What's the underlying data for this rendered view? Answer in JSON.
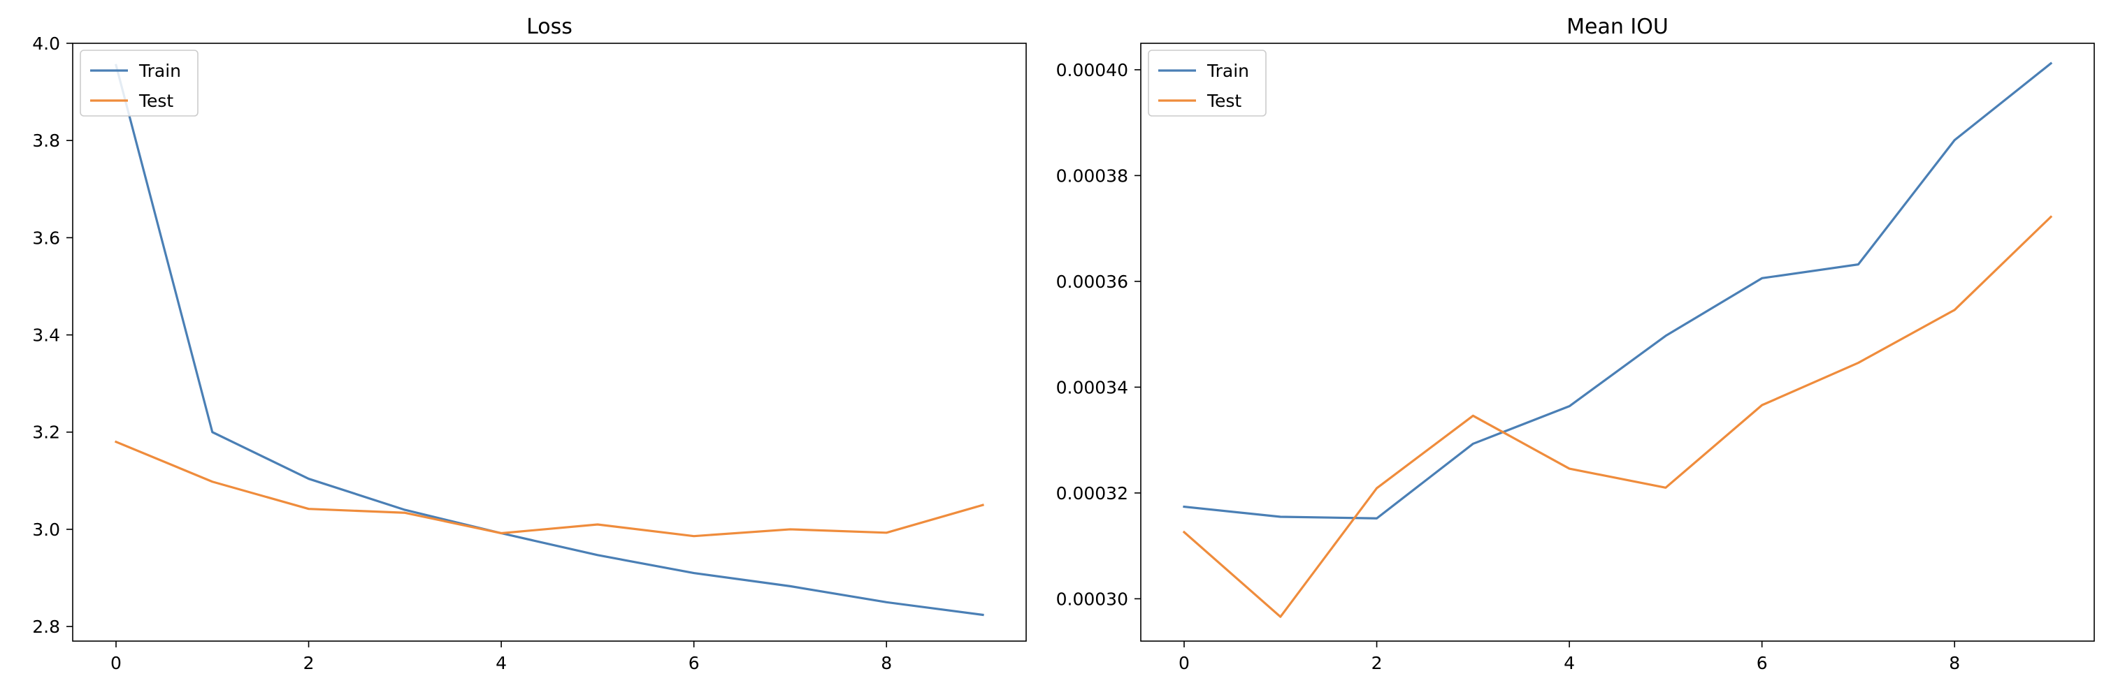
{
  "chart_data": [
    {
      "type": "line",
      "title": "Loss",
      "xlabel": "",
      "ylabel": "",
      "x": [
        0,
        1,
        2,
        3,
        4,
        5,
        6,
        7,
        8,
        9
      ],
      "xlim": [
        -0.45,
        9.45
      ],
      "ylim": [
        2.77,
        4.0
      ],
      "xticks": [
        0,
        2,
        4,
        6,
        8
      ],
      "xtick_labels": [
        "0",
        "2",
        "4",
        "6",
        "8"
      ],
      "yticks": [
        2.8,
        3.0,
        3.2,
        3.4,
        3.6,
        3.8,
        4.0
      ],
      "ytick_labels": [
        "2.8",
        "3.0",
        "3.2",
        "3.4",
        "3.6",
        "3.8",
        "4.0"
      ],
      "grid": false,
      "legend": "upper left",
      "series": [
        {
          "name": "Train",
          "color": "#4a7fb5",
          "values": [
            3.955,
            3.2,
            3.104,
            3.04,
            2.992,
            2.947,
            2.91,
            2.883,
            2.85,
            2.824
          ]
        },
        {
          "name": "Test",
          "color": "#ef8c3c",
          "values": [
            3.18,
            3.098,
            3.042,
            3.034,
            2.992,
            3.01,
            2.986,
            3.0,
            2.993,
            3.05
          ]
        }
      ]
    },
    {
      "type": "line",
      "title": "Mean IOU",
      "xlabel": "",
      "ylabel": "",
      "x": [
        0,
        1,
        2,
        3,
        4,
        5,
        6,
        7,
        8,
        9
      ],
      "xlim": [
        -0.45,
        9.45
      ],
      "ylim": [
        0.000292,
        0.000405
      ],
      "xticks": [
        0,
        2,
        4,
        6,
        8
      ],
      "xtick_labels": [
        "0",
        "2",
        "4",
        "6",
        "8"
      ],
      "yticks": [
        0.0003,
        0.00032,
        0.00034,
        0.00036,
        0.00038,
        0.0004
      ],
      "ytick_labels": [
        "0.00030",
        "0.00032",
        "0.00034",
        "0.00036",
        "0.00038",
        "0.00040"
      ],
      "grid": false,
      "legend": "upper left",
      "series": [
        {
          "name": "Train",
          "color": "#4a7fb5",
          "values": [
            0.0003174,
            0.0003155,
            0.0003152,
            0.0003293,
            0.0003364,
            0.0003497,
            0.0003606,
            0.0003632,
            0.0003867,
            0.0004012
          ]
        },
        {
          "name": "Test",
          "color": "#ef8c3c",
          "values": [
            0.0003126,
            0.0002966,
            0.0003209,
            0.0003346,
            0.0003246,
            0.000321,
            0.0003366,
            0.0003446,
            0.0003546,
            0.0003722
          ]
        }
      ]
    }
  ]
}
